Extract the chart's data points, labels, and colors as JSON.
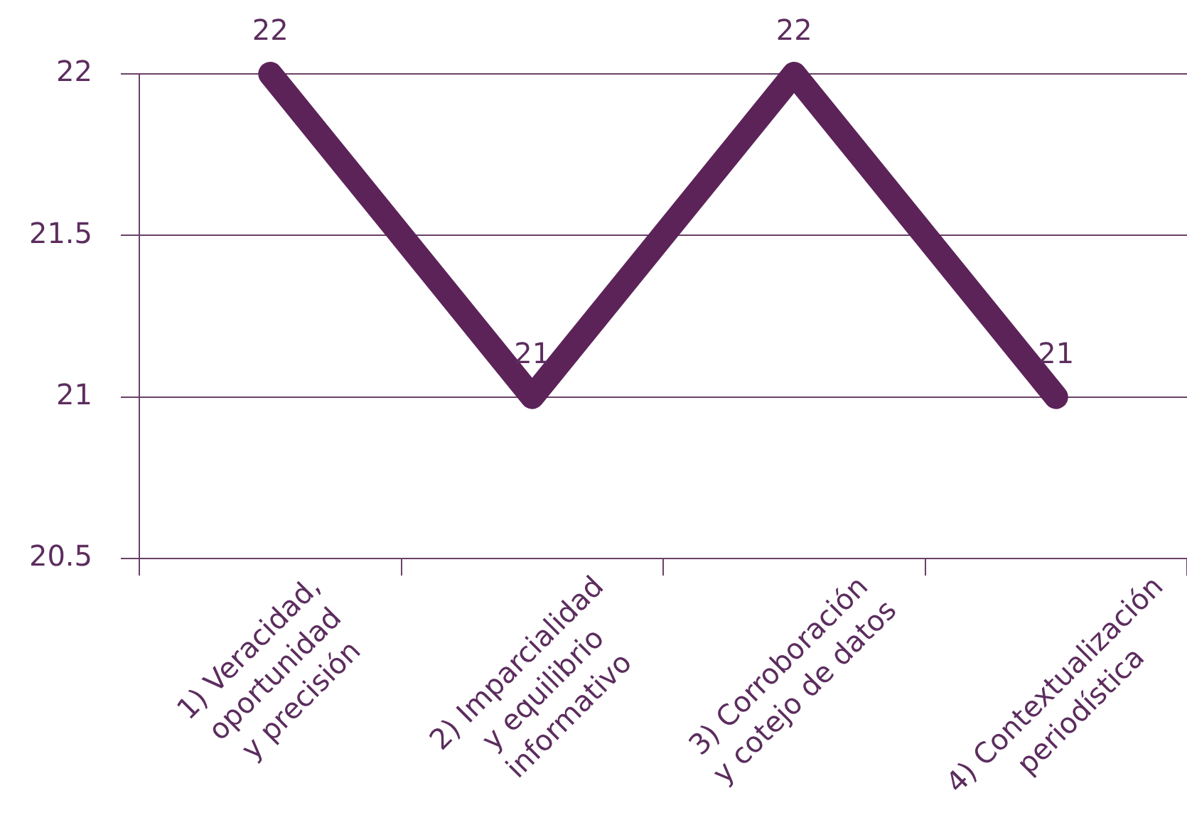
{
  "chart_data": {
    "type": "line",
    "categories": [
      "1) Veracidad,\noportunidad\ny precisión",
      "2) Imparcialidad\ny equilibrio\ninformativo",
      "3) Corroboración\ny cotejo de datos",
      "4) Contextualización\nperiodística"
    ],
    "values": [
      22,
      21,
      22,
      21
    ],
    "color": "#5c2359",
    "ylim": [
      20.5,
      22
    ],
    "yticks": [
      20.5,
      21,
      21.5,
      22
    ],
    "grid": "y",
    "data_labels": true,
    "marker": "none",
    "line_style": "solid"
  }
}
